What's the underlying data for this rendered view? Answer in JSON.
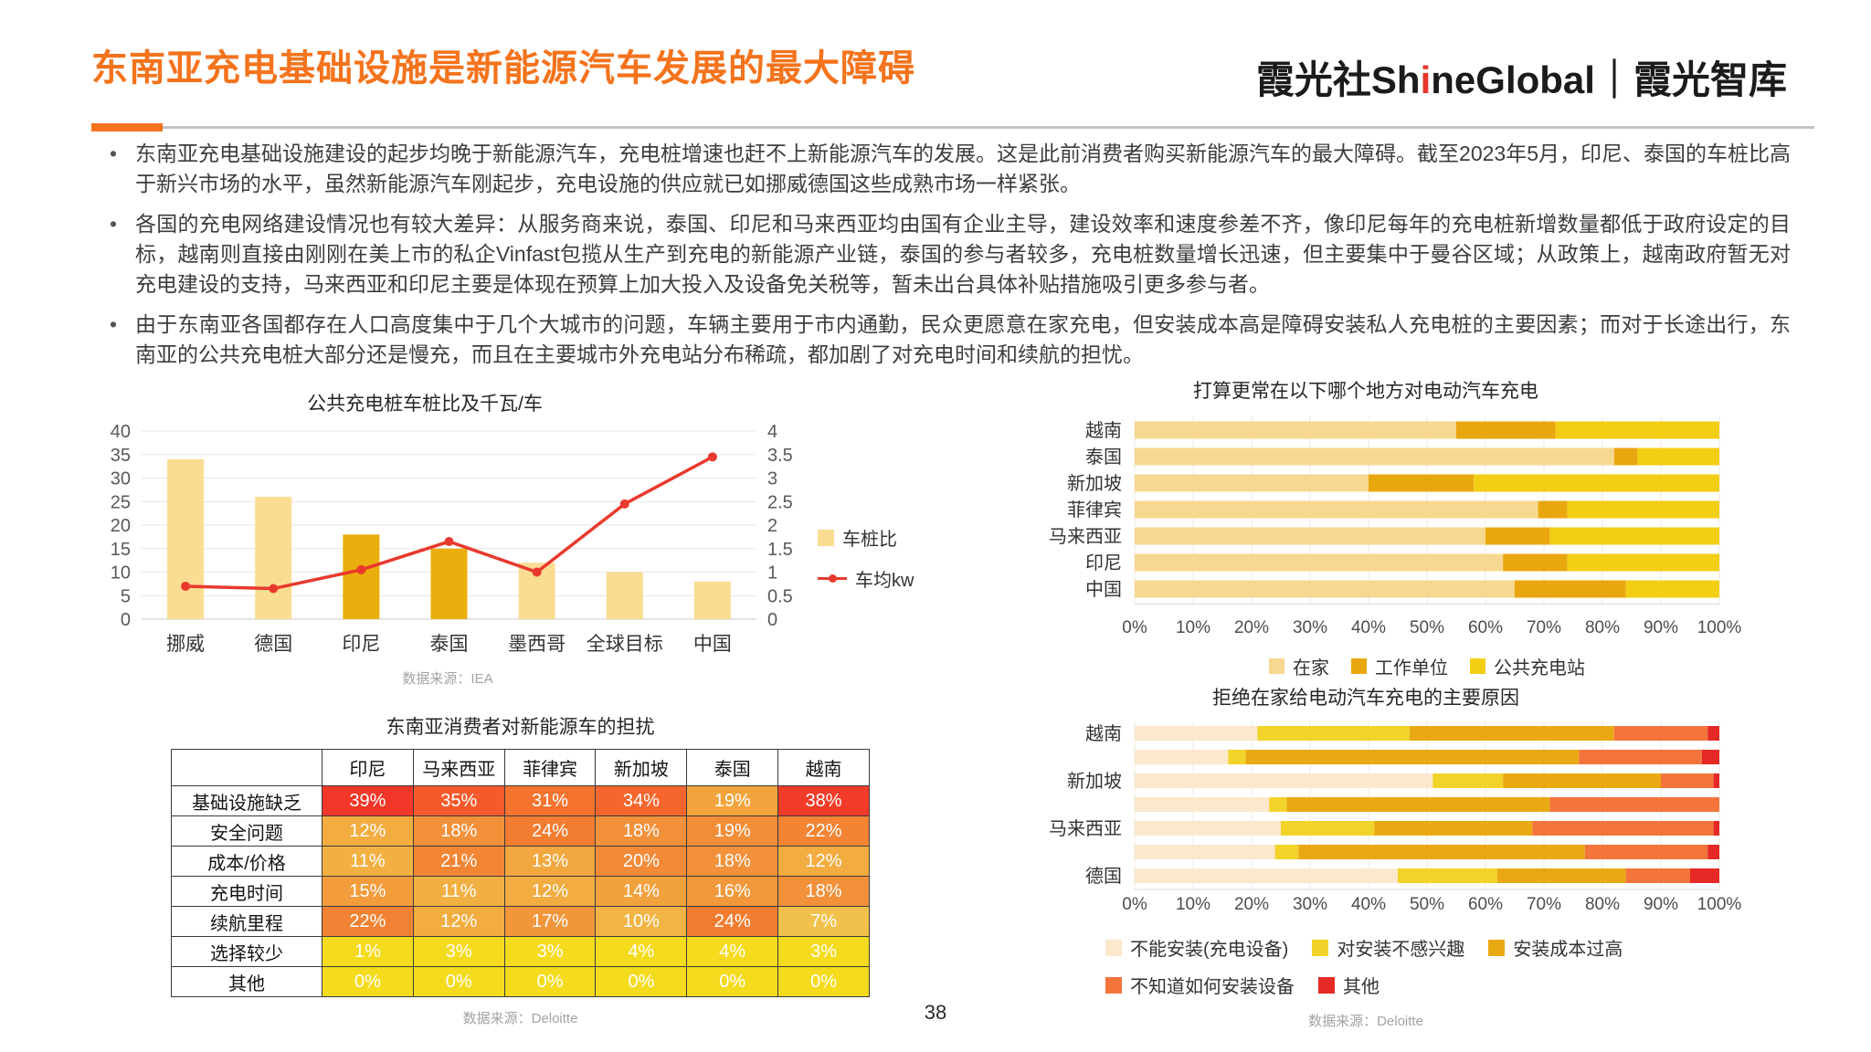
{
  "header": {
    "title": "东南亚充电基础设施是新能源汽车发展的最大障碍",
    "logo": {
      "cn": "霞光社",
      "latin_pre": "Sh",
      "latin_accent": "i",
      "latin_post": "neGlobal",
      "divider": "｜",
      "suffix": "霞光智库"
    }
  },
  "bullets": [
    "东南亚充电基础设施建设的起步均晚于新能源汽车，充电桩增速也赶不上新能源汽车的发展。这是此前消费者购买新能源汽车的最大障碍。截至2023年5月，印尼、泰国的车桩比高于新兴市场的水平，虽然新能源汽车刚起步，充电设施的供应就已如挪威德国这些成熟市场一样紧张。",
    "各国的充电网络建设情况也有较大差异：从服务商来说，泰国、印尼和马来西亚均由国有企业主导，建设效率和速度参差不齐，像印尼每年的充电桩新增数量都低于政府设定的目标，越南则直接由刚刚在美上市的私企Vinfast包揽从生产到充电的新能源产业链，泰国的参与者较多，充电桩数量增长迅速，但主要集中于曼谷区域；从政策上，越南政府暂无对充电建设的支持，马来西亚和印尼主要是体现在预算上加大投入及设备免关税等，暂未出台具体补贴措施吸引更多参与者。",
    "由于东南亚各国都存在人口高度集中于几个大城市的问题，车辆主要用于市内通勤，民众更愿意在家充电，但安装成本高是障碍安装私人充电桩的主要因素；而对于长途出行，东南亚的公共充电桩大部分还是慢充，而且在主要城市外充电站分布稀疏，都加剧了对充电时间和续航的担忧。"
  ],
  "chart_data": [
    {
      "type": "combo-bar-line",
      "title": "公共充电桩车桩比及千瓦/车",
      "categories": [
        "挪威",
        "德国",
        "印尼",
        "泰国",
        "墨西哥",
        "全球目标",
        "中国"
      ],
      "bar_series": {
        "name": "车桩比",
        "values": [
          34,
          26,
          18,
          15,
          12,
          10,
          8
        ],
        "colors": [
          "#FADC92",
          "#FADC92",
          "#EAAE0D",
          "#EAAE0D",
          "#FADC92",
          "#FADC92",
          "#FADC92"
        ],
        "legend_color": "#FADC92"
      },
      "line_series": {
        "name": "车均kw",
        "values": [
          0.7,
          0.65,
          1.05,
          1.65,
          1.0,
          2.45,
          3.45
        ],
        "color": "#E8392D"
      },
      "y1_axis": {
        "min": 0,
        "max": 40,
        "step": 5
      },
      "y2_axis": {
        "min": 0,
        "max": 4,
        "step": 0.5
      },
      "grid": true,
      "legend_position": "right",
      "source": "数据来源：IEA"
    },
    {
      "type": "stacked-bar-horizontal",
      "title": "打算更常在以下哪个地方对电动汽车充电",
      "categories": [
        "越南",
        "泰国",
        "新加坡",
        "菲律宾",
        "马来西亚",
        "印尼",
        "中国"
      ],
      "series": [
        {
          "name": "在家",
          "color": "#F7D890",
          "values": [
            55,
            82,
            40,
            69,
            60,
            63,
            65
          ]
        },
        {
          "name": "工作单位",
          "color": "#E9A70F",
          "values": [
            17,
            4,
            18,
            5,
            11,
            11,
            19
          ]
        },
        {
          "name": "公共充电站",
          "color": "#F2CE14",
          "values": [
            28,
            14,
            42,
            26,
            29,
            26,
            16
          ]
        }
      ],
      "x_axis": {
        "min": 0,
        "max": 100,
        "step": 10,
        "tick_format": "percent"
      },
      "grid": true,
      "legend_position": "bottom"
    },
    {
      "type": "stacked-bar-horizontal",
      "title": "拒绝在家给电动汽车充电的主要原因",
      "categories": [
        "越南",
        "",
        "新加坡",
        "",
        "马来西亚",
        "",
        "德国"
      ],
      "series": [
        {
          "name": "不能安装(充电设备)",
          "color": "#FCE8CD",
          "values": [
            21,
            16,
            51,
            23,
            25,
            24,
            45
          ]
        },
        {
          "name": "对安装不感兴趣",
          "color": "#F2D32A",
          "values": [
            26,
            3,
            12,
            3,
            16,
            4,
            17
          ]
        },
        {
          "name": "安装成本过高",
          "color": "#E9A913",
          "values": [
            35,
            57,
            27,
            45,
            27,
            49,
            22
          ]
        },
        {
          "name": "不知道如何安装设备",
          "color": "#F4753C",
          "values": [
            16,
            21,
            9,
            29,
            31,
            21,
            11
          ]
        },
        {
          "name": "其他",
          "color": "#E52A25",
          "values": [
            2,
            3,
            1,
            0,
            1,
            2,
            5
          ]
        }
      ],
      "x_axis": {
        "min": 0,
        "max": 100,
        "step": 10,
        "tick_format": "percent"
      },
      "grid": true,
      "legend_position": "bottom",
      "source": "数据来源：Deloitte"
    },
    {
      "type": "table",
      "title": "东南亚消费者对新能源车的担扰",
      "columns": [
        "印尼",
        "马来西亚",
        "菲律宾",
        "新加坡",
        "泰国",
        "越南"
      ],
      "rows": [
        {
          "label": "基础设施缺乏",
          "values": [
            "39%",
            "35%",
            "31%",
            "34%",
            "19%",
            "38%"
          ],
          "colors": [
            "#F23728",
            "#F45A2C",
            "#F4732F",
            "#F4662D",
            "#F2A43C",
            "#F23B29"
          ]
        },
        {
          "label": "安全问题",
          "values": [
            "12%",
            "18%",
            "24%",
            "18%",
            "19%",
            "22%"
          ],
          "colors": [
            "#F2AC40",
            "#F2913A",
            "#F27D31",
            "#F2913A",
            "#F28D38",
            "#F28434"
          ]
        },
        {
          "label": "成本/价格",
          "values": [
            "11%",
            "21%",
            "13%",
            "20%",
            "18%",
            "12%"
          ],
          "colors": [
            "#F2B042",
            "#F28635",
            "#F2A83E",
            "#F28A37",
            "#F2913A",
            "#F2AC40"
          ]
        },
        {
          "label": "充电时间",
          "values": [
            "15%",
            "11%",
            "12%",
            "14%",
            "16%",
            "18%"
          ],
          "colors": [
            "#F29C3C",
            "#F2B042",
            "#F2AC40",
            "#F2A23D",
            "#F2983B",
            "#F2913A"
          ]
        },
        {
          "label": "续航里程",
          "values": [
            "22%",
            "12%",
            "17%",
            "10%",
            "24%",
            "7%"
          ],
          "colors": [
            "#F28233",
            "#F2AC40",
            "#F2963B",
            "#F2B444",
            "#F27D31",
            "#F2C14B"
          ]
        },
        {
          "label": "选择较少",
          "values": [
            "1%",
            "3%",
            "3%",
            "4%",
            "4%",
            "3%"
          ],
          "colors": [
            "#F5DB1E",
            "#F5DB1E",
            "#F5DB1E",
            "#F5DB1E",
            "#F5DB1E",
            "#F5DB1E"
          ]
        },
        {
          "label": "其他",
          "values": [
            "0%",
            "0%",
            "0%",
            "0%",
            "0%",
            "0%"
          ],
          "colors": [
            "#F5DB1E",
            "#F5DB1E",
            "#F5DB1E",
            "#F5DB1E",
            "#F5DB1E",
            "#F5DB1E"
          ]
        }
      ],
      "source": "数据来源：Deloitte"
    }
  ],
  "footer": {
    "page_number": "38"
  },
  "colors": {
    "accent_orange": "#F4731C",
    "logo_accent_red": "#E8372C",
    "grid_line": "#E6E6E6",
    "axis_line": "#C9C9C9"
  }
}
